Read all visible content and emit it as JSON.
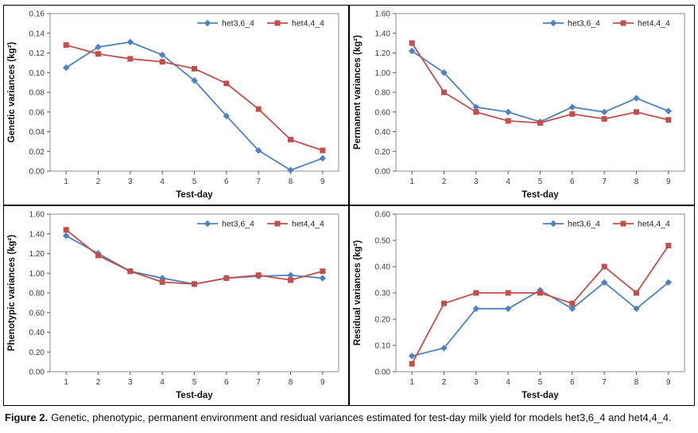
{
  "figure": {
    "caption_label": "Figure 2.",
    "caption_text": "Genetic, phenotypic, permanent environment and residual variances estimated for test-day milk yield for models het3,6_4 and het4,4_4."
  },
  "colors": {
    "series_blue": "#4F81BD",
    "series_red": "#C0504D",
    "plot_border": "#8c8c8c",
    "axis": "#595959"
  },
  "chart_data": [
    {
      "type": "line",
      "title": "",
      "xlabel": "Test-day",
      "ylabel": "Genetic  variances  (kg²)",
      "categories": [
        1,
        2,
        3,
        4,
        5,
        6,
        7,
        8,
        9
      ],
      "ylim": [
        0,
        0.16
      ],
      "ytick_step": 0.02,
      "ydecimals": 2,
      "grid": false,
      "legend_position": "top-right-inside",
      "series": [
        {
          "name": "het3,6_4",
          "marker": "diamond",
          "color": "#4F81BD",
          "values": [
            0.105,
            0.126,
            0.131,
            0.118,
            0.092,
            0.056,
            0.021,
            0.001,
            0.013
          ]
        },
        {
          "name": "het4,4_4",
          "marker": "square",
          "color": "#C0504D",
          "values": [
            0.128,
            0.119,
            0.114,
            0.111,
            0.104,
            0.089,
            0.063,
            0.032,
            0.021
          ]
        }
      ]
    },
    {
      "type": "line",
      "title": "",
      "xlabel": "Test-day",
      "ylabel": "Permanent variances  (kg²)",
      "categories": [
        1,
        2,
        3,
        4,
        5,
        6,
        7,
        8,
        9
      ],
      "ylim": [
        0,
        1.6
      ],
      "ytick_step": 0.2,
      "ydecimals": 2,
      "grid": false,
      "legend_position": "top-right-inside",
      "series": [
        {
          "name": "het3,6_4",
          "marker": "diamond",
          "color": "#4F81BD",
          "values": [
            1.22,
            1.0,
            0.65,
            0.6,
            0.5,
            0.65,
            0.6,
            0.74,
            0.61
          ]
        },
        {
          "name": "het4,4_4",
          "marker": "square",
          "color": "#C0504D",
          "values": [
            1.3,
            0.8,
            0.6,
            0.51,
            0.49,
            0.58,
            0.53,
            0.6,
            0.52
          ]
        }
      ]
    },
    {
      "type": "line",
      "title": "",
      "xlabel": "Test-day",
      "ylabel": "Phenotypic  variances  (kg²)",
      "categories": [
        1,
        2,
        3,
        4,
        5,
        6,
        7,
        8,
        9
      ],
      "ylim": [
        0,
        1.6
      ],
      "ytick_step": 0.2,
      "ydecimals": 2,
      "grid": false,
      "legend_position": "top-right-inside",
      "series": [
        {
          "name": "het3,6_4",
          "marker": "diamond",
          "color": "#4F81BD",
          "values": [
            1.38,
            1.2,
            1.02,
            0.95,
            0.89,
            0.95,
            0.97,
            0.98,
            0.95
          ]
        },
        {
          "name": "het4,4_4",
          "marker": "square",
          "color": "#C0504D",
          "values": [
            1.44,
            1.18,
            1.02,
            0.91,
            0.89,
            0.95,
            0.98,
            0.93,
            1.02
          ]
        }
      ]
    },
    {
      "type": "line",
      "title": "",
      "xlabel": "Test-day",
      "ylabel": "Residual variances  (kg²)",
      "categories": [
        1,
        2,
        3,
        4,
        5,
        6,
        7,
        8,
        9
      ],
      "ylim": [
        0,
        0.6
      ],
      "ytick_step": 0.1,
      "ydecimals": 2,
      "grid": false,
      "legend_position": "top-right-inside",
      "series": [
        {
          "name": "het3,6_4",
          "marker": "diamond",
          "color": "#4F81BD",
          "values": [
            0.06,
            0.09,
            0.24,
            0.24,
            0.31,
            0.24,
            0.34,
            0.24,
            0.34
          ]
        },
        {
          "name": "het4,4_4",
          "marker": "square",
          "color": "#C0504D",
          "values": [
            0.03,
            0.26,
            0.3,
            0.3,
            0.3,
            0.26,
            0.4,
            0.3,
            0.48
          ]
        }
      ]
    }
  ]
}
